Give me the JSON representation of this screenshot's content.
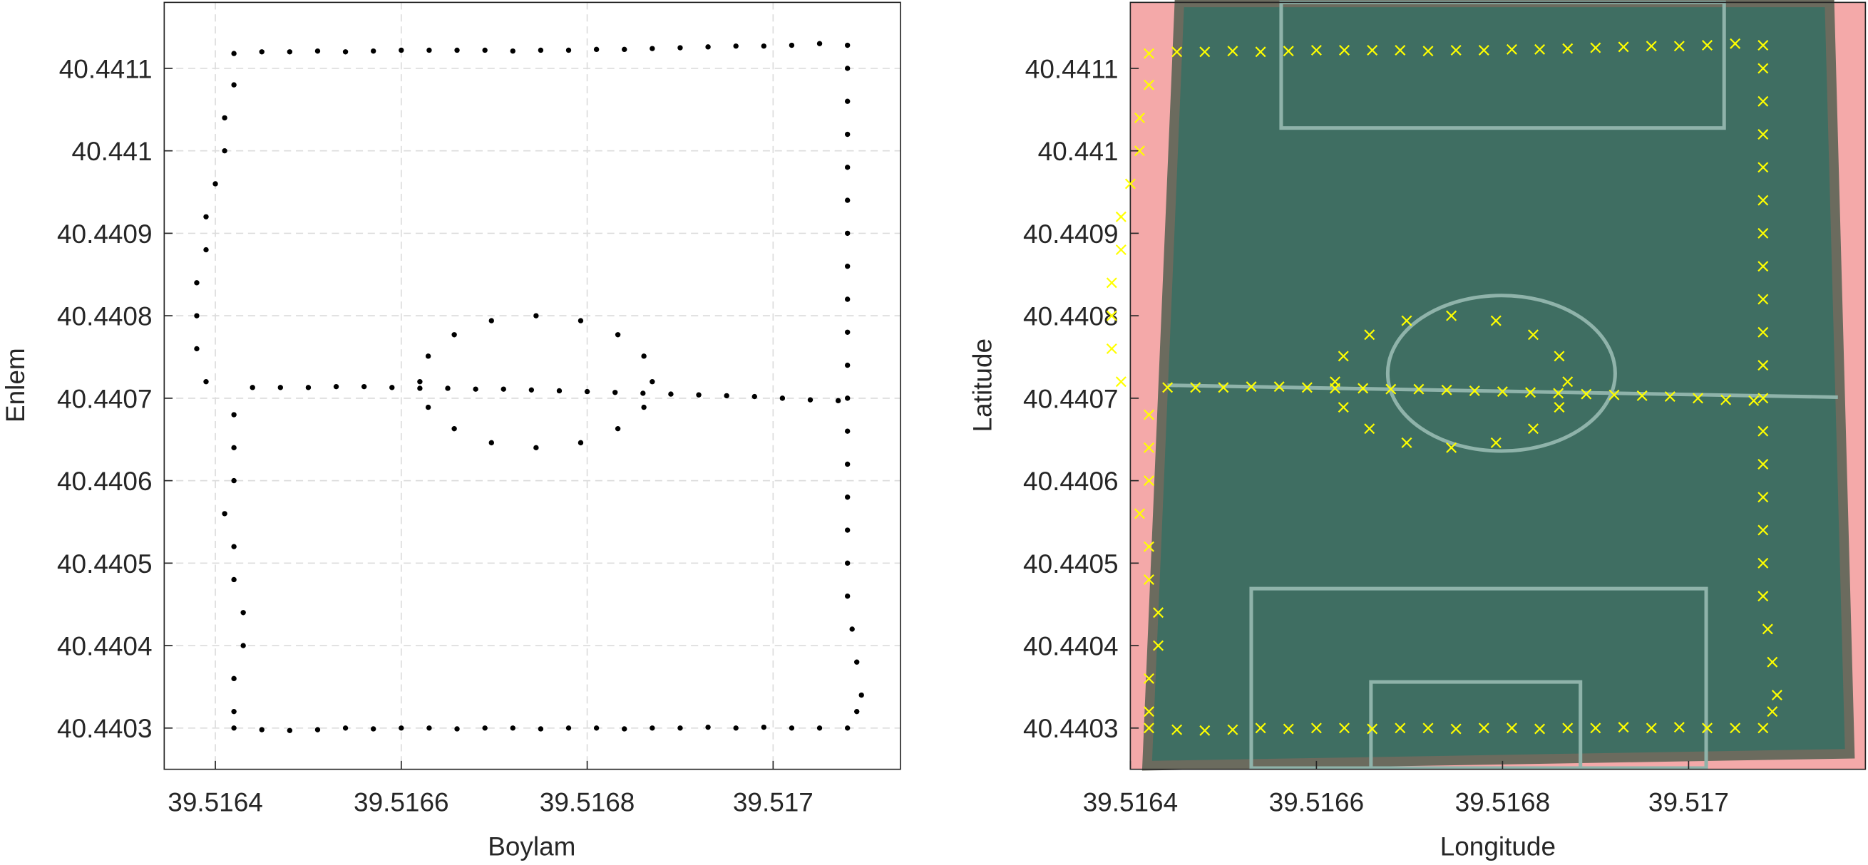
{
  "chart_data": [
    {
      "type": "scatter",
      "marker": "dot",
      "grid": true,
      "xlabel": "Boylam",
      "ylabel": "Enlem",
      "xlim": [
        39.516345,
        39.517137
      ],
      "ylim": [
        40.44025,
        40.44118
      ],
      "xticks": [
        39.5164,
        39.5166,
        39.5168,
        39.517
      ],
      "yticks": [
        40.4403,
        40.4404,
        40.4405,
        40.4406,
        40.4407,
        40.4408,
        40.4409,
        40.441,
        40.4411
      ],
      "series": [
        {
          "color": "#000000",
          "x": [
            39.51642,
            39.51645,
            39.51648,
            39.51651,
            39.51654,
            39.51657,
            39.5166,
            39.51663,
            39.51666,
            39.51669,
            39.51672,
            39.51675,
            39.51678,
            39.51681,
            39.51684,
            39.51687,
            39.5169,
            39.51693,
            39.51696,
            39.51699,
            39.51702,
            39.51705,
            39.51708,
            39.51708,
            39.51708,
            39.51708,
            39.51708,
            39.51708,
            39.51708,
            39.51708,
            39.51708,
            39.51708,
            39.51708,
            39.51708,
            39.51708,
            39.51708,
            39.51708,
            39.51708,
            39.51708,
            39.51708,
            39.517085,
            39.51709,
            39.517095,
            39.51709,
            39.51708,
            39.51705,
            39.51702,
            39.51699,
            39.51696,
            39.51693,
            39.5169,
            39.51687,
            39.51684,
            39.51681,
            39.51678,
            39.51675,
            39.51672,
            39.51669,
            39.51666,
            39.51663,
            39.5166,
            39.51657,
            39.51654,
            39.51651,
            39.51648,
            39.51645,
            39.51642,
            39.51642,
            39.51642,
            39.51643,
            39.51643,
            39.51642,
            39.51642,
            39.51641,
            39.51642,
            39.51642,
            39.51642,
            39.51639,
            39.51638,
            39.51638,
            39.51638,
            39.51639,
            39.51639,
            39.5164,
            39.51641,
            39.51641,
            39.51642,
            39.51644,
            39.51647,
            39.5165,
            39.51653,
            39.51656,
            39.51659,
            39.51662,
            39.51665,
            39.51668,
            39.51671,
            39.51674,
            39.51677,
            39.5168,
            39.51683,
            39.51686,
            39.51689,
            39.51692,
            39.51695,
            39.51698,
            39.51701,
            39.51704,
            39.51707,
            39.51687,
            39.516861,
            39.516833,
            39.516793,
            39.516745,
            39.516697,
            39.516657,
            39.516629,
            39.51662,
            39.516629,
            39.516657,
            39.516697,
            39.516745,
            39.516793,
            39.516833,
            39.516861
          ],
          "y": [
            40.441118,
            40.44112,
            40.44112,
            40.441121,
            40.44112,
            40.441121,
            40.441122,
            40.441122,
            40.441122,
            40.441122,
            40.441121,
            40.441122,
            40.441122,
            40.441123,
            40.441123,
            40.441124,
            40.441125,
            40.441126,
            40.441127,
            40.441127,
            40.441128,
            40.44113,
            40.441128,
            40.4411,
            40.44106,
            40.44102,
            40.44098,
            40.44094,
            40.4409,
            40.44086,
            40.44082,
            40.44078,
            40.44074,
            40.4407,
            40.44066,
            40.44062,
            40.44058,
            40.44054,
            40.4405,
            40.44046,
            40.44042,
            40.44038,
            40.44034,
            40.44032,
            40.4403,
            40.4403,
            40.4403,
            40.440301,
            40.4403,
            40.440301,
            40.4403,
            40.4403,
            40.440299,
            40.4403,
            40.4403,
            40.440299,
            40.4403,
            40.4403,
            40.440299,
            40.4403,
            40.4403,
            40.440299,
            40.4403,
            40.440298,
            40.440297,
            40.440298,
            40.4403,
            40.44032,
            40.44036,
            40.4404,
            40.44044,
            40.44048,
            40.44052,
            40.44056,
            40.4406,
            40.44064,
            40.44068,
            40.44072,
            40.44076,
            40.4408,
            40.44084,
            40.44088,
            40.44092,
            40.44096,
            40.441,
            40.44104,
            40.44108,
            40.440713,
            40.440713,
            40.440713,
            40.440714,
            40.440714,
            40.440713,
            40.440712,
            40.440712,
            40.440711,
            40.440711,
            40.44071,
            40.440709,
            40.440708,
            40.440707,
            40.440706,
            40.440705,
            40.440704,
            40.440703,
            40.440702,
            40.4407,
            40.440698,
            40.440697,
            40.44072,
            40.440751,
            40.440777,
            40.440794,
            40.4408,
            40.440794,
            40.440777,
            40.440751,
            40.44072,
            40.440689,
            40.440663,
            40.440646,
            40.44064,
            40.440646,
            40.440663,
            40.440689
          ]
        }
      ]
    },
    {
      "type": "scatter",
      "marker": "x",
      "grid": false,
      "xlabel": "Longitude",
      "ylabel": "Latitude",
      "xlim": [
        39.5164,
        39.51719
      ],
      "ylim": [
        40.44025,
        40.44118
      ],
      "xticks": [
        39.5164,
        39.5166,
        39.5168,
        39.517
      ],
      "yticks": [
        40.4403,
        40.4404,
        40.4405,
        40.4406,
        40.4407,
        40.4408,
        40.4409,
        40.441,
        40.4411
      ],
      "series": [
        {
          "color": "#ffff00",
          "x": [
            39.51642,
            39.51645,
            39.51648,
            39.51651,
            39.51654,
            39.51657,
            39.5166,
            39.51663,
            39.51666,
            39.51669,
            39.51672,
            39.51675,
            39.51678,
            39.51681,
            39.51684,
            39.51687,
            39.5169,
            39.51693,
            39.51696,
            39.51699,
            39.51702,
            39.51705,
            39.51708,
            39.51708,
            39.51708,
            39.51708,
            39.51708,
            39.51708,
            39.51708,
            39.51708,
            39.51708,
            39.51708,
            39.51708,
            39.51708,
            39.51708,
            39.51708,
            39.51708,
            39.51708,
            39.51708,
            39.51708,
            39.517085,
            39.51709,
            39.517095,
            39.51709,
            39.51708,
            39.51705,
            39.51702,
            39.51699,
            39.51696,
            39.51693,
            39.5169,
            39.51687,
            39.51684,
            39.51681,
            39.51678,
            39.51675,
            39.51672,
            39.51669,
            39.51666,
            39.51663,
            39.5166,
            39.51657,
            39.51654,
            39.51651,
            39.51648,
            39.51645,
            39.51642,
            39.51642,
            39.51642,
            39.51643,
            39.51643,
            39.51642,
            39.51642,
            39.51641,
            39.51642,
            39.51642,
            39.51642,
            39.51639,
            39.51638,
            39.51638,
            39.51638,
            39.51639,
            39.51639,
            39.5164,
            39.51641,
            39.51641,
            39.51642,
            39.51644,
            39.51647,
            39.5165,
            39.51653,
            39.51656,
            39.51659,
            39.51662,
            39.51665,
            39.51668,
            39.51671,
            39.51674,
            39.51677,
            39.5168,
            39.51683,
            39.51686,
            39.51689,
            39.51692,
            39.51695,
            39.51698,
            39.51701,
            39.51704,
            39.51707,
            39.51687,
            39.516861,
            39.516833,
            39.516793,
            39.516745,
            39.516697,
            39.516657,
            39.516629,
            39.51662,
            39.516629,
            39.516657,
            39.516697,
            39.516745,
            39.516793,
            39.516833,
            39.516861
          ],
          "y": [
            40.441118,
            40.44112,
            40.44112,
            40.441121,
            40.44112,
            40.441121,
            40.441122,
            40.441122,
            40.441122,
            40.441122,
            40.441121,
            40.441122,
            40.441122,
            40.441123,
            40.441123,
            40.441124,
            40.441125,
            40.441126,
            40.441127,
            40.441127,
            40.441128,
            40.44113,
            40.441128,
            40.4411,
            40.44106,
            40.44102,
            40.44098,
            40.44094,
            40.4409,
            40.44086,
            40.44082,
            40.44078,
            40.44074,
            40.4407,
            40.44066,
            40.44062,
            40.44058,
            40.44054,
            40.4405,
            40.44046,
            40.44042,
            40.44038,
            40.44034,
            40.44032,
            40.4403,
            40.4403,
            40.4403,
            40.440301,
            40.4403,
            40.440301,
            40.4403,
            40.4403,
            40.440299,
            40.4403,
            40.4403,
            40.440299,
            40.4403,
            40.4403,
            40.440299,
            40.4403,
            40.4403,
            40.440299,
            40.4403,
            40.440298,
            40.440297,
            40.440298,
            40.4403,
            40.44032,
            40.44036,
            40.4404,
            40.44044,
            40.44048,
            40.44052,
            40.44056,
            40.4406,
            40.44064,
            40.44068,
            40.44072,
            40.44076,
            40.4408,
            40.44084,
            40.44088,
            40.44092,
            40.44096,
            40.441,
            40.44104,
            40.44108,
            40.440713,
            40.440713,
            40.440713,
            40.440714,
            40.440714,
            40.440713,
            40.440712,
            40.440712,
            40.440711,
            40.440711,
            40.44071,
            40.440709,
            40.440708,
            40.440707,
            40.440706,
            40.440705,
            40.440704,
            40.440703,
            40.440702,
            40.4407,
            40.440698,
            40.440697,
            40.44072,
            40.440751,
            40.440777,
            40.440794,
            40.4408,
            40.440794,
            40.440777,
            40.440751,
            40.44072,
            40.440689,
            40.440663,
            40.440646,
            40.44064,
            40.440646,
            40.440663,
            40.440689
          ]
        }
      ]
    }
  ]
}
